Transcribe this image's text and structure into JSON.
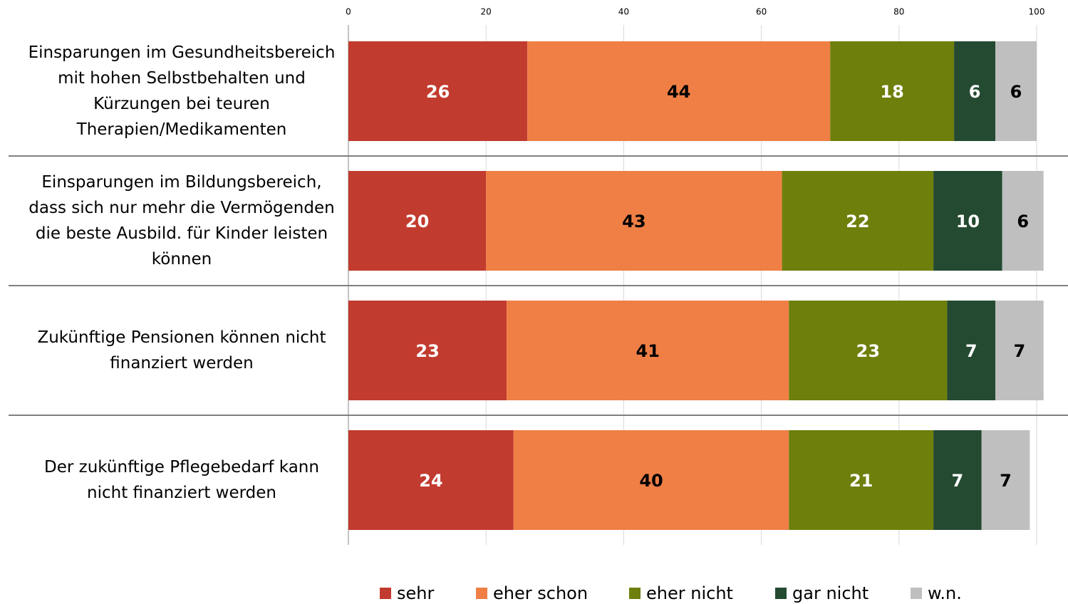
{
  "chart_data": {
    "type": "stacked_bar_horizontal",
    "categories": [
      "Einsparungen im Gesundheitsbereich mit hohen Selbstbehalten und Kürzungen bei teuren Therapien/Medikamenten",
      "Einsparungen im Bildungsbereich, dass sich nur mehr die Vermögenden die beste Ausbild. für Kinder leisten können",
      "Zukünftige Pensionen können nicht finanziert werden",
      "Der zukünftige Pflegebedarf kann nicht finanziert werden"
    ],
    "series": [
      {
        "name": "sehr",
        "color": "#c23b2f",
        "label_color": "#ffffff",
        "values": [
          26,
          20,
          23,
          24
        ]
      },
      {
        "name": "eher schon",
        "color": "#ef7f45",
        "label_color": "#000000",
        "values": [
          44,
          43,
          41,
          40
        ]
      },
      {
        "name": "eher nicht",
        "color": "#6e7f0b",
        "label_color": "#ffffff",
        "values": [
          18,
          22,
          23,
          21
        ]
      },
      {
        "name": "gar nicht",
        "color": "#244a31",
        "label_color": "#ffffff",
        "values": [
          6,
          10,
          7,
          7
        ]
      },
      {
        "name": "w.n.",
        "color": "#bfbfbf",
        "label_color": "#000000",
        "values": [
          6,
          6,
          7,
          7
        ]
      }
    ],
    "xlim": [
      0,
      100
    ],
    "xticks": [
      0,
      20,
      40,
      60,
      80,
      100
    ],
    "grid": true
  }
}
